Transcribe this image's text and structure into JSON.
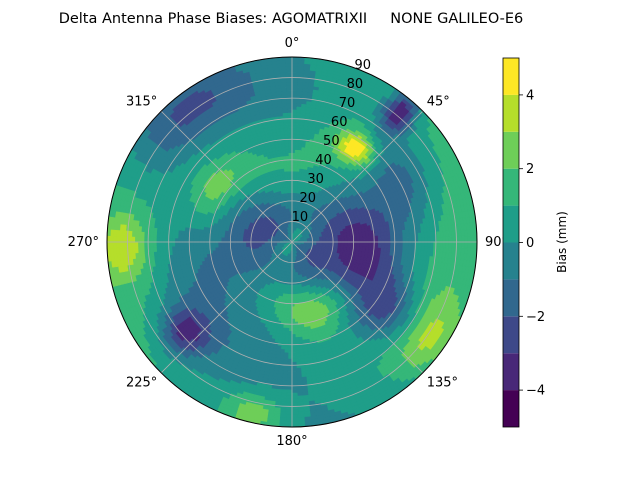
{
  "chart_data": {
    "type": "polar_contour",
    "title": "Delta Antenna Phase Biases: AGOMATRIXII     NONE GALILEO-E6",
    "theta_direction": "clockwise",
    "theta_zero": "north",
    "theta_tick_labels": [
      "0°",
      "45°",
      "90°",
      "135°",
      "180°",
      "225°",
      "270°",
      "315°"
    ],
    "theta_ticks_deg": [
      0,
      45,
      90,
      135,
      180,
      225,
      270,
      315
    ],
    "r_ticks": [
      10,
      20,
      30,
      40,
      50,
      60,
      70,
      80,
      90
    ],
    "r_tick_labels": [
      "10",
      "20",
      "30",
      "40",
      "50",
      "60",
      "70",
      "80",
      "90"
    ],
    "r_tick_angle_deg": 22.5,
    "rlim": [
      0,
      90
    ],
    "grid": true,
    "colorbar": {
      "label": "Bias (mm)",
      "levels": [
        -5,
        -4,
        -3,
        -2,
        -1,
        0,
        1,
        2,
        3,
        4,
        5
      ],
      "tick_values": [
        -4,
        -2,
        0,
        2,
        4
      ],
      "tick_labels": [
        "−4",
        "−2",
        "0",
        "2",
        "4"
      ],
      "colormap": "viridis",
      "level_colors": [
        "#440154",
        "#482878",
        "#3e4989",
        "#31688e",
        "#26828e",
        "#1f9e89",
        "#35b779",
        "#6ece58",
        "#b5de2b",
        "#fde725"
      ]
    },
    "features": [
      {
        "azimuth_deg": 40,
        "zenith_deg": 82,
        "width_deg": 5,
        "radial_width": 8,
        "bias_mm": -4.6
      },
      {
        "azimuth_deg": 35,
        "zenith_deg": 55,
        "width_deg": 6,
        "radial_width": 5,
        "bias_mm": 4.0
      },
      {
        "azimuth_deg": 32,
        "zenith_deg": 55,
        "width_deg": 14,
        "radial_width": 12,
        "bias_mm": 1.8
      },
      {
        "azimuth_deg": 20,
        "zenith_deg": 60,
        "width_deg": 20,
        "radial_width": 20,
        "bias_mm": 0.6
      },
      {
        "azimuth_deg": 60,
        "zenith_deg": 60,
        "width_deg": 14,
        "radial_width": 10,
        "bias_mm": -1.2
      },
      {
        "azimuth_deg": 100,
        "zenith_deg": 32,
        "width_deg": 18,
        "radial_width": 12,
        "bias_mm": -3.0
      },
      {
        "azimuth_deg": 125,
        "zenith_deg": 55,
        "width_deg": 12,
        "radial_width": 10,
        "bias_mm": -3.2
      },
      {
        "azimuth_deg": 125,
        "zenith_deg": 82,
        "width_deg": 14,
        "radial_width": 8,
        "bias_mm": 2.2
      },
      {
        "azimuth_deg": 160,
        "zenith_deg": 35,
        "width_deg": 12,
        "radial_width": 9,
        "bias_mm": 2.4
      },
      {
        "azimuth_deg": 193,
        "zenith_deg": 85,
        "width_deg": 10,
        "radial_width": 7,
        "bias_mm": 2.6
      },
      {
        "azimuth_deg": 230,
        "zenith_deg": 68,
        "width_deg": 8,
        "radial_width": 8,
        "bias_mm": -3.4
      },
      {
        "azimuth_deg": 268,
        "zenith_deg": 82,
        "width_deg": 10,
        "radial_width": 8,
        "bias_mm": 2.4
      },
      {
        "azimuth_deg": 305,
        "zenith_deg": 45,
        "width_deg": 12,
        "radial_width": 7,
        "bias_mm": 2.2
      },
      {
        "azimuth_deg": 320,
        "zenith_deg": 80,
        "width_deg": 25,
        "radial_width": 12,
        "bias_mm": -3.0
      },
      {
        "azimuth_deg": 285,
        "zenith_deg": 15,
        "width_deg": 40,
        "radial_width": 10,
        "bias_mm": -2.0
      }
    ]
  }
}
